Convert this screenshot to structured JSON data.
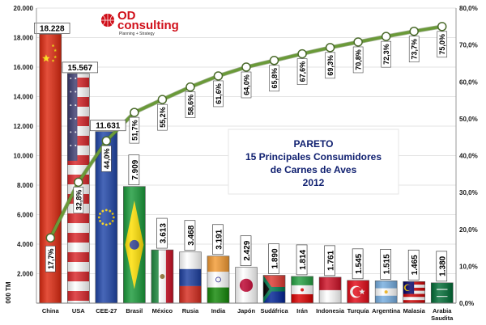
{
  "chart_data": {
    "type": "bar",
    "title_lines": [
      "PARETO",
      "15 Principales Consumidores",
      "de Carnes de Aves",
      "2012"
    ],
    "ylabel": "000 TM",
    "y_axis_left": {
      "ylim": [
        0,
        20000
      ],
      "ticks": [
        "2.000",
        "4.000",
        "6.000",
        "8.000",
        "10.000",
        "12.000",
        "14.000",
        "16.000",
        "18.000",
        "20.000"
      ]
    },
    "y_axis_right": {
      "ylim": [
        0,
        80
      ],
      "ticks": [
        "0,0%",
        "10,0%",
        "20,0%",
        "30,0%",
        "40,0%",
        "50,0%",
        "60,0%",
        "70,0%",
        "80,0%"
      ]
    },
    "categories": [
      "China",
      "USA",
      "CEE-27",
      "Brasil",
      "México",
      "Rusia",
      "India",
      "Japón",
      "Sudáfrica",
      "Irán",
      "Indonesia",
      "Turquía",
      "Argentina",
      "Malasia",
      "Arabia Saudita"
    ],
    "series": [
      {
        "type": "bar",
        "values": [
          18228,
          15567,
          11631,
          7909,
          3613,
          3468,
          3191,
          2429,
          1890,
          1814,
          1761,
          1545,
          1515,
          1465,
          1380
        ],
        "labels": [
          "18.228",
          "15.567",
          "11.631",
          "7.909",
          "3.613",
          "3.468",
          "3.191",
          "2.429",
          "1.890",
          "1.814",
          "1.761",
          "1.545",
          "1.515",
          "1.465",
          "1.380"
        ]
      },
      {
        "type": "line",
        "axis": "right",
        "values": [
          17.7,
          32.8,
          44.0,
          51.7,
          55.2,
          58.6,
          61.6,
          64.0,
          65.8,
          67.6,
          69.3,
          70.8,
          72.3,
          73.7,
          75.0
        ],
        "labels": [
          "17,7%",
          "32,8%",
          "44,0%",
          "51,7%",
          "55,2%",
          "58,6%",
          "61,6%",
          "64,0%",
          "65,8%",
          "67,6%",
          "69,3%",
          "70,8%",
          "72,3%",
          "73,7%",
          "75,0%"
        ],
        "color": "#6a9a38"
      }
    ],
    "grid": true
  },
  "logo": {
    "brand_od": "OD",
    "brand_consulting": "consulting",
    "tagline": "Planning + Strategy"
  },
  "flags": [
    "china",
    "usa",
    "eu",
    "brazil",
    "mexico",
    "russia",
    "india",
    "japan",
    "south-africa",
    "iran",
    "indonesia",
    "turkey",
    "argentina",
    "malaysia",
    "saudi-arabia"
  ]
}
